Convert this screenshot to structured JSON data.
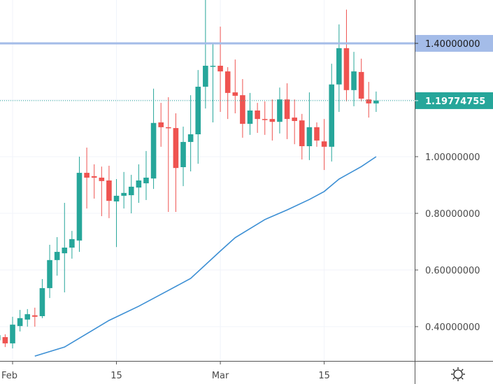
{
  "chart_data": {
    "type": "candlestick",
    "title": "",
    "xlabel": "",
    "ylabel": "",
    "ylim": [
      0.295,
      1.55
    ],
    "grid": true,
    "price_axis": {
      "ticks": [
        {
          "value": 0.4,
          "label": "0.40000000"
        },
        {
          "value": 0.6,
          "label": "0.60000000"
        },
        {
          "value": 0.8,
          "label": "0.80000000"
        },
        {
          "value": 1.0,
          "label": "1.00000000"
        }
      ]
    },
    "time_axis": {
      "ticks": [
        {
          "label": "Feb",
          "date": "02-01"
        },
        {
          "label": "15",
          "date": "02-15"
        },
        {
          "label": "Mar",
          "date": "03-01"
        },
        {
          "label": "15",
          "date": "03-15"
        }
      ]
    },
    "horizontal_line": {
      "value": 1.4,
      "label": "1.40000000",
      "color": "#a4bce8"
    },
    "last_price": {
      "value": 1.19774755,
      "label": "1.19774755",
      "color": "#26a69a"
    },
    "colors": {
      "up": "#26a69a",
      "down": "#ef5350",
      "ma": "#3c8fd4",
      "grid": "#f0f3fa"
    },
    "series": [
      {
        "name": "price",
        "type": "candlestick",
        "candles": [
          {
            "date": "01-30",
            "o": 0.352,
            "h": 0.378,
            "l": 0.336,
            "c": 0.37
          },
          {
            "date": "01-31",
            "o": 0.363,
            "h": 0.373,
            "l": 0.328,
            "c": 0.341
          },
          {
            "date": "02-01",
            "o": 0.341,
            "h": 0.435,
            "l": 0.323,
            "c": 0.407
          },
          {
            "date": "02-02",
            "o": 0.402,
            "h": 0.459,
            "l": 0.383,
            "c": 0.43
          },
          {
            "date": "02-03",
            "o": 0.425,
            "h": 0.462,
            "l": 0.4,
            "c": 0.444
          },
          {
            "date": "02-04",
            "o": 0.44,
            "h": 0.467,
            "l": 0.4,
            "c": 0.435
          },
          {
            "date": "02-05",
            "o": 0.437,
            "h": 0.568,
            "l": 0.43,
            "c": 0.536
          },
          {
            "date": "02-06",
            "o": 0.536,
            "h": 0.689,
            "l": 0.501,
            "c": 0.635
          },
          {
            "date": "02-07",
            "o": 0.635,
            "h": 0.716,
            "l": 0.58,
            "c": 0.664
          },
          {
            "date": "02-08",
            "o": 0.659,
            "h": 0.837,
            "l": 0.521,
            "c": 0.679
          },
          {
            "date": "02-09",
            "o": 0.679,
            "h": 0.738,
            "l": 0.64,
            "c": 0.709
          },
          {
            "date": "02-10",
            "o": 0.704,
            "h": 1.0,
            "l": 0.664,
            "c": 0.943
          },
          {
            "date": "02-11",
            "o": 0.943,
            "h": 1.032,
            "l": 0.817,
            "c": 0.926
          },
          {
            "date": "02-12",
            "o": 0.931,
            "h": 0.973,
            "l": 0.852,
            "c": 0.926
          },
          {
            "date": "02-13",
            "o": 0.926,
            "h": 0.965,
            "l": 0.79,
            "c": 0.914
          },
          {
            "date": "02-14",
            "o": 0.916,
            "h": 0.968,
            "l": 0.783,
            "c": 0.844
          },
          {
            "date": "02-15",
            "o": 0.842,
            "h": 0.921,
            "l": 0.681,
            "c": 0.862
          },
          {
            "date": "02-16",
            "o": 0.862,
            "h": 0.946,
            "l": 0.817,
            "c": 0.872
          },
          {
            "date": "02-17",
            "o": 0.864,
            "h": 0.936,
            "l": 0.8,
            "c": 0.894
          },
          {
            "date": "02-18",
            "o": 0.891,
            "h": 0.973,
            "l": 0.837,
            "c": 0.916
          },
          {
            "date": "02-19",
            "o": 0.906,
            "h": 1.02,
            "l": 0.847,
            "c": 0.926
          },
          {
            "date": "02-20",
            "o": 0.923,
            "h": 1.24,
            "l": 0.886,
            "c": 1.119
          },
          {
            "date": "02-21",
            "o": 1.121,
            "h": 1.19,
            "l": 1.035,
            "c": 1.104
          },
          {
            "date": "02-22",
            "o": 1.104,
            "h": 1.21,
            "l": 0.805,
            "c": 1.101
          },
          {
            "date": "02-23",
            "o": 1.101,
            "h": 1.153,
            "l": 0.805,
            "c": 0.96
          },
          {
            "date": "02-24",
            "o": 0.963,
            "h": 1.106,
            "l": 0.896,
            "c": 1.052
          },
          {
            "date": "02-25",
            "o": 1.052,
            "h": 1.217,
            "l": 0.948,
            "c": 1.079
          },
          {
            "date": "02-26",
            "o": 1.079,
            "h": 1.306,
            "l": 0.975,
            "c": 1.247
          },
          {
            "date": "02-27",
            "o": 1.247,
            "h": 1.553,
            "l": 1.17,
            "c": 1.321
          },
          {
            "date": "02-28",
            "o": 1.319,
            "h": 1.4,
            "l": 1.121,
            "c": 1.321
          },
          {
            "date": "03-01",
            "o": 1.321,
            "h": 1.459,
            "l": 1.158,
            "c": 1.301
          },
          {
            "date": "03-02",
            "o": 1.301,
            "h": 1.316,
            "l": 1.133,
            "c": 1.225
          },
          {
            "date": "03-03",
            "o": 1.227,
            "h": 1.343,
            "l": 1.153,
            "c": 1.215
          },
          {
            "date": "03-04",
            "o": 1.217,
            "h": 1.274,
            "l": 1.067,
            "c": 1.116
          },
          {
            "date": "03-05",
            "o": 1.116,
            "h": 1.225,
            "l": 1.077,
            "c": 1.163
          },
          {
            "date": "03-06",
            "o": 1.163,
            "h": 1.19,
            "l": 1.084,
            "c": 1.133
          },
          {
            "date": "03-07",
            "o": 1.133,
            "h": 1.195,
            "l": 1.077,
            "c": 1.131
          },
          {
            "date": "03-08",
            "o": 1.133,
            "h": 1.202,
            "l": 1.057,
            "c": 1.123
          },
          {
            "date": "03-09",
            "o": 1.123,
            "h": 1.244,
            "l": 1.082,
            "c": 1.202
          },
          {
            "date": "03-10",
            "o": 1.202,
            "h": 1.259,
            "l": 1.062,
            "c": 1.133
          },
          {
            "date": "03-11",
            "o": 1.138,
            "h": 1.202,
            "l": 1.044,
            "c": 1.126
          },
          {
            "date": "03-12",
            "o": 1.128,
            "h": 1.151,
            "l": 0.99,
            "c": 1.037
          },
          {
            "date": "03-13",
            "o": 1.037,
            "h": 1.227,
            "l": 0.988,
            "c": 1.104
          },
          {
            "date": "03-14",
            "o": 1.104,
            "h": 1.121,
            "l": 1.035,
            "c": 1.057
          },
          {
            "date": "03-15",
            "o": 1.054,
            "h": 1.133,
            "l": 0.953,
            "c": 1.035
          },
          {
            "date": "03-16",
            "o": 1.035,
            "h": 1.328,
            "l": 0.983,
            "c": 1.255
          },
          {
            "date": "03-17",
            "o": 1.255,
            "h": 1.467,
            "l": 1.158,
            "c": 1.383
          },
          {
            "date": "03-18",
            "o": 1.383,
            "h": 1.519,
            "l": 1.195,
            "c": 1.235
          },
          {
            "date": "03-19",
            "o": 1.235,
            "h": 1.37,
            "l": 1.178,
            "c": 1.301
          },
          {
            "date": "03-20",
            "o": 1.299,
            "h": 1.346,
            "l": 1.195,
            "c": 1.205
          },
          {
            "date": "03-21",
            "o": 1.202,
            "h": 1.264,
            "l": 1.138,
            "c": 1.188
          },
          {
            "date": "03-22",
            "o": 1.188,
            "h": 1.23,
            "l": 1.158,
            "c": 1.198
          }
        ]
      },
      {
        "name": "moving-average",
        "type": "line",
        "points": [
          {
            "date": "02-04",
            "value": 0.296
          },
          {
            "date": "02-08",
            "value": 0.328
          },
          {
            "date": "02-14",
            "value": 0.422
          },
          {
            "date": "02-18",
            "value": 0.472
          },
          {
            "date": "02-22",
            "value": 0.528
          },
          {
            "date": "02-25",
            "value": 0.57
          },
          {
            "date": "03-01",
            "value": 0.667
          },
          {
            "date": "03-03",
            "value": 0.714
          },
          {
            "date": "03-07",
            "value": 0.778
          },
          {
            "date": "03-10",
            "value": 0.812
          },
          {
            "date": "03-13",
            "value": 0.849
          },
          {
            "date": "03-15",
            "value": 0.877
          },
          {
            "date": "03-17",
            "value": 0.921
          },
          {
            "date": "03-20",
            "value": 0.965
          },
          {
            "date": "03-22",
            "value": 1.0
          }
        ]
      }
    ]
  },
  "ui": {
    "settings_icon": "gear-icon"
  }
}
